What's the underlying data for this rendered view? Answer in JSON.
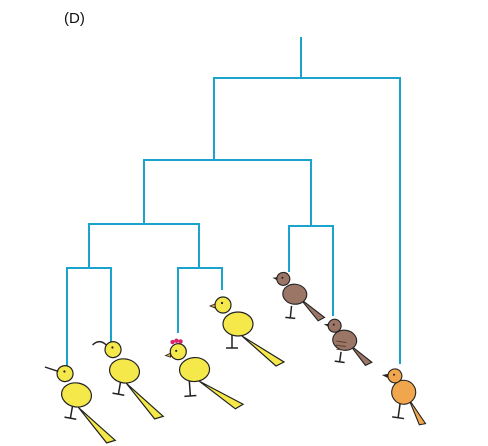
{
  "panel_label": "(D)",
  "colors": {
    "branch": "#1aa3cc",
    "yellow_bird": "#f5e84a",
    "brown_bird": "#9b7565",
    "orange_bird": "#f0a64c",
    "outline": "#222222",
    "comb": "#d8246c"
  },
  "tree": {
    "node": "root",
    "children": [
      {
        "node": "clade-a",
        "children": [
          {
            "node": "clade-a1",
            "children": [
              {
                "node": "clade-a1a",
                "children": [
                  {
                    "leaf": "yellow-bird-long-beak"
                  },
                  {
                    "leaf": "yellow-bird-curved-beak"
                  }
                ]
              },
              {
                "node": "clade-a1b",
                "children": [
                  {
                    "leaf": "yellow-bird-comb"
                  },
                  {
                    "leaf": "yellow-bird-short-beak"
                  }
                ]
              }
            ]
          },
          {
            "node": "clade-a2",
            "children": [
              {
                "leaf": "brown-bird-1"
              },
              {
                "leaf": "brown-bird-2"
              }
            ]
          }
        ]
      },
      {
        "leaf": "orange-bird"
      }
    ]
  },
  "birds": [
    {
      "id": "yellow-bird-long-beak",
      "icon": "yellow-bird-long-beak-icon",
      "color": "#f5e84a"
    },
    {
      "id": "yellow-bird-curved-beak",
      "icon": "yellow-bird-curved-beak-icon",
      "color": "#f5e84a"
    },
    {
      "id": "yellow-bird-comb",
      "icon": "yellow-bird-comb-icon",
      "color": "#f5e84a"
    },
    {
      "id": "yellow-bird-short-beak",
      "icon": "yellow-bird-short-beak-icon",
      "color": "#f5e84a"
    },
    {
      "id": "brown-bird-1",
      "icon": "brown-bird-icon",
      "color": "#9b7565"
    },
    {
      "id": "brown-bird-2",
      "icon": "brown-striped-bird-icon",
      "color": "#9b7565"
    },
    {
      "id": "orange-bird",
      "icon": "orange-bird-icon",
      "color": "#f0a64c"
    }
  ]
}
